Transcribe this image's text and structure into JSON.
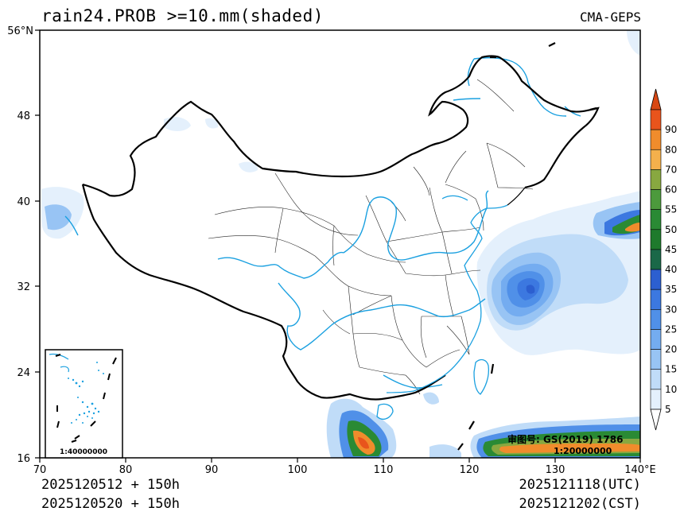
{
  "header": {
    "title": "rain24.PROB >=10.mm(shaded)",
    "model": "CMA-GEPS"
  },
  "axes": {
    "lat_labels": [
      "56°N",
      "48",
      "40",
      "32",
      "24",
      "16"
    ],
    "lon_labels": [
      "70",
      "80",
      "90",
      "100",
      "110",
      "120",
      "130",
      "140°E"
    ]
  },
  "colorbar": {
    "levels": [
      "90",
      "80",
      "70",
      "60",
      "55",
      "50",
      "45",
      "40",
      "35",
      "30",
      "25",
      "20",
      "15",
      "10",
      "5"
    ],
    "colors": [
      "#e8541c",
      "#f08c2c",
      "#f4b04c",
      "#88a840",
      "#4c9a3c",
      "#2a8a34",
      "#1e7a2c",
      "#1a6848",
      "#2c5fd0",
      "#3c78e0",
      "#5090e8",
      "#74acf0",
      "#98c4f4",
      "#c0dcf8",
      "#e4f0fc"
    ],
    "arrow_top_color": "#d84814",
    "arrow_bottom_color": "#ffffff"
  },
  "inset": {
    "scale_label": "1:40000000"
  },
  "approval": {
    "text": "审图号: GS(2019) 1786",
    "scale": "1:20000000"
  },
  "footer": {
    "init_utc": "2025120512 + 150h",
    "init_cst": "2025120520 + 150h",
    "valid_utc": "2025121118(UTC)",
    "valid_cst": "2025121202(CST)"
  }
}
